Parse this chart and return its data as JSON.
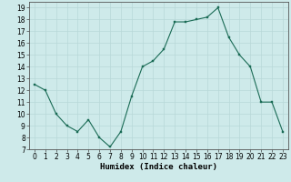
{
  "x": [
    0,
    1,
    2,
    3,
    4,
    5,
    6,
    7,
    8,
    9,
    10,
    11,
    12,
    13,
    14,
    15,
    16,
    17,
    18,
    19,
    20,
    21,
    22,
    23
  ],
  "y": [
    12.5,
    12.0,
    10.0,
    9.0,
    8.5,
    9.5,
    8.0,
    7.2,
    8.5,
    11.5,
    14.0,
    14.5,
    15.5,
    17.8,
    17.8,
    18.0,
    18.2,
    19.0,
    16.5,
    15.0,
    14.0,
    11.0,
    11.0,
    8.5
  ],
  "xlim": [
    -0.5,
    23.5
  ],
  "ylim": [
    7,
    19.5
  ],
  "yticks": [
    7,
    8,
    9,
    10,
    11,
    12,
    13,
    14,
    15,
    16,
    17,
    18,
    19
  ],
  "xticks": [
    0,
    1,
    2,
    3,
    4,
    5,
    6,
    7,
    8,
    9,
    10,
    11,
    12,
    13,
    14,
    15,
    16,
    17,
    18,
    19,
    20,
    21,
    22,
    23
  ],
  "xlabel": "Humidex (Indice chaleur)",
  "line_color": "#1a6b55",
  "marker_color": "#1a6b55",
  "bg_color": "#ceeaea",
  "grid_color": "#b8d8d8",
  "tick_fontsize": 5.5,
  "xlabel_fontsize": 6.5
}
